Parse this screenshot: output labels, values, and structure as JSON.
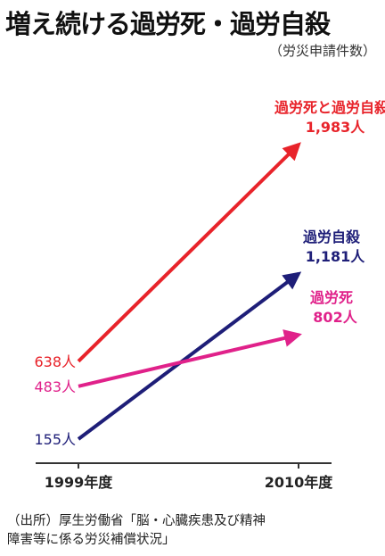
{
  "header": {
    "title": "増え続ける過労死・過労自殺",
    "subtitle": "（労災申請件数）"
  },
  "footer": {
    "source_line1": "（出所）厚生労働省「脳・心臓疾患及び精神",
    "source_line2": "障害等に係る労災補償状況」"
  },
  "chart_data": {
    "type": "line",
    "categories": [
      "1999年度",
      "2010年度"
    ],
    "series": [
      {
        "name": "過労死と過労自殺",
        "values": [
          638,
          1983
        ],
        "labels": [
          "638人",
          "1,983人"
        ],
        "color": "#e8232a"
      },
      {
        "name": "過労自殺",
        "values": [
          155,
          1181
        ],
        "labels": [
          "155人",
          "1,181人"
        ],
        "color": "#1e1e78"
      },
      {
        "name": "過労死",
        "values": [
          483,
          802
        ],
        "labels": [
          "483人",
          "802人"
        ],
        "color": "#e0218a"
      }
    ],
    "grid": false,
    "legend": "end labels"
  }
}
